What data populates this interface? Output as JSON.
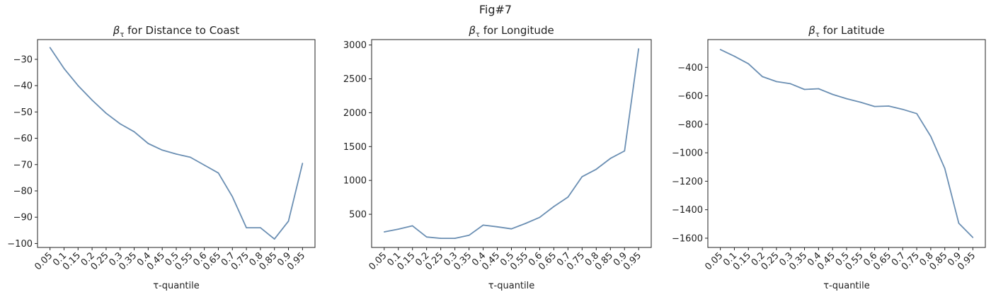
{
  "figure_title": "Fig#7",
  "colors": {
    "line": "#6b8fb3",
    "axis": "#222222"
  },
  "chart_data": [
    {
      "type": "line",
      "title_symbol": "β",
      "title_sub": "τ",
      "title_text": " for Distance to Coast",
      "xlabel": "τ-quantile",
      "ylabel": "",
      "categories": [
        "0.05",
        "0.1",
        "0.15",
        "0.2",
        "0.25",
        "0.3",
        "0.35",
        "0.4",
        "0.45",
        "0.5",
        "0.55",
        "0.6",
        "0.65",
        "0.7",
        "0.75",
        "0.8",
        "0.85",
        "0.9",
        "0.95"
      ],
      "values": [
        -25.5,
        -33.5,
        -40,
        -45.5,
        -50.5,
        -54.5,
        -57.5,
        -62,
        -64.5,
        -66,
        -67.2,
        -70.2,
        -73.2,
        -82.2,
        -94,
        -94,
        -98.3,
        -91.5,
        -69.5
      ],
      "ylim": [
        -101.5,
        -22.5
      ],
      "yticks": [
        -30,
        -40,
        -50,
        -60,
        -70,
        -80,
        -90,
        -100
      ],
      "ytick_labels": [
        "−30",
        "−40",
        "−50",
        "−60",
        "−70",
        "−80",
        "−90",
        "−100"
      ],
      "grid": false
    },
    {
      "type": "line",
      "title_symbol": "β",
      "title_sub": "τ",
      "title_text": " for Longitude",
      "xlabel": "τ-quantile",
      "ylabel": "",
      "categories": [
        "0.05",
        "0.1",
        "0.15",
        "0.2",
        "0.25",
        "0.3",
        "0.35",
        "0.4",
        "0.45",
        "0.5",
        "0.55",
        "0.6",
        "0.65",
        "0.7",
        "0.75",
        "0.8",
        "0.85",
        "0.9",
        "0.95"
      ],
      "values": [
        240,
        280,
        330,
        165,
        145,
        145,
        190,
        340,
        315,
        285,
        365,
        455,
        615,
        755,
        1055,
        1165,
        1325,
        1435,
        2945
      ],
      "ylim": [
        10,
        3080
      ],
      "yticks": [
        500,
        1000,
        1500,
        2000,
        2500,
        3000
      ],
      "ytick_labels": [
        "500",
        "1000",
        "1500",
        "2000",
        "2500",
        "3000"
      ],
      "grid": false
    },
    {
      "type": "line",
      "title_symbol": "β",
      "title_sub": "τ",
      "title_text": " for Latitude",
      "xlabel": "τ-quantile",
      "ylabel": "",
      "categories": [
        "0.05",
        "0.1",
        "0.15",
        "0.2",
        "0.25",
        "0.3",
        "0.35",
        "0.4",
        "0.45",
        "0.5",
        "0.55",
        "0.6",
        "0.65",
        "0.7",
        "0.75",
        "0.8",
        "0.85",
        "0.9",
        "0.95"
      ],
      "values": [
        -275,
        -322,
        -375,
        -465,
        -500,
        -515,
        -555,
        -550,
        -590,
        -620,
        -645,
        -675,
        -672,
        -695,
        -725,
        -885,
        -1110,
        -1495,
        -1595
      ],
      "ylim": [
        -1665,
        -205
      ],
      "yticks": [
        -400,
        -600,
        -800,
        -1000,
        -1200,
        -1400,
        -1600
      ],
      "ytick_labels": [
        "−400",
        "−600",
        "−800",
        "−1000",
        "−1200",
        "−1400",
        "−1600"
      ],
      "grid": false
    }
  ]
}
